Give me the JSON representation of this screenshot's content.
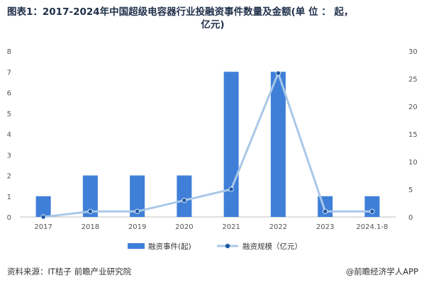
{
  "title_line1": "图表1：2017-2024年中国超级电容器行业投融资事件数量及金额(单 位 ： 起，",
  "title_line2": "亿元)",
  "source": "资料来源：IT桔子 前瞻产业研究院",
  "brand": "@前瞻经济学人APP",
  "colors": {
    "bar": "#3f7fd8",
    "line": "#a9c8e8",
    "point": "#1f5aa6"
  },
  "chart_data": {
    "type": "bar+line",
    "categories": [
      "2017",
      "2018",
      "2019",
      "2020",
      "2021",
      "2022",
      "2023",
      "2024.1-8"
    ],
    "series": [
      {
        "name": "融资事件(起)",
        "type": "bar",
        "axis": "left",
        "values": [
          1,
          2,
          2,
          2,
          7,
          7,
          1,
          1
        ]
      },
      {
        "name": "融资规模（亿元）",
        "type": "line",
        "axis": "right",
        "values": [
          0,
          1,
          1,
          3,
          5,
          26,
          1,
          1
        ]
      }
    ],
    "y_left": {
      "range": [
        0,
        8
      ],
      "ticks": [
        "0",
        "1",
        "2",
        "3",
        "4",
        "5",
        "6",
        "7",
        "8"
      ]
    },
    "y_right": {
      "range": [
        0,
        30
      ],
      "ticks": [
        "0",
        "5",
        "10",
        "15",
        "20",
        "25",
        "30"
      ]
    },
    "grid": false,
    "legend_position": "bottom"
  }
}
